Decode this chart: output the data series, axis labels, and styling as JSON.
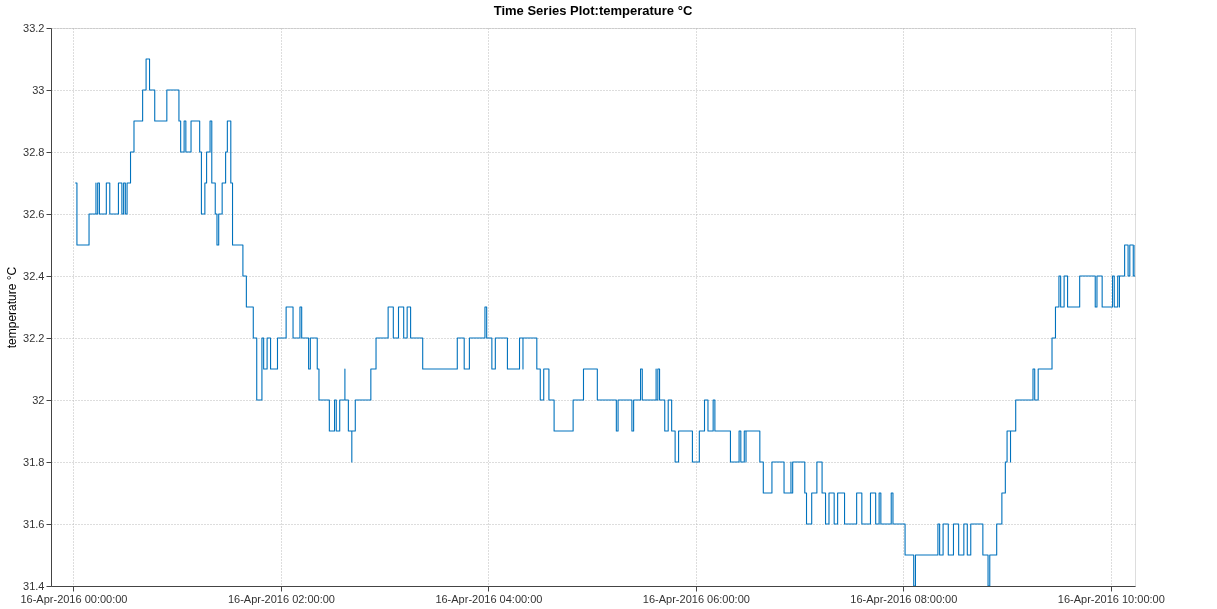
{
  "chart_data": {
    "type": "step",
    "title": "Time Series Plot:temperature °C",
    "ylabel": "temperature °C",
    "xlim": [
      "2016-04-15T23:47",
      "2016-04-16T10:14"
    ],
    "xticks": [
      {
        "value": "2016-04-16T00:00",
        "label": "16-Apr-2016 00:00:00"
      },
      {
        "value": "2016-04-16T02:00",
        "label": "16-Apr-2016 02:00:00"
      },
      {
        "value": "2016-04-16T04:00",
        "label": "16-Apr-2016 04:00:00"
      },
      {
        "value": "2016-04-16T06:00",
        "label": "16-Apr-2016 06:00:00"
      },
      {
        "value": "2016-04-16T08:00",
        "label": "16-Apr-2016 08:00:00"
      },
      {
        "value": "2016-04-16T10:00",
        "label": "16-Apr-2016 10:00:00"
      }
    ],
    "ylim": [
      31.4,
      33.2
    ],
    "yticks": [
      31.4,
      31.6,
      31.8,
      32,
      32.2,
      32.4,
      32.6,
      32.8,
      33,
      33.2
    ],
    "grid": true,
    "line_style": "solid",
    "marker": "none",
    "series": [
      {
        "color": "#0072bd",
        "x": [
          "2016-04-16T00:01",
          "2016-04-16T00:02",
          "2016-04-16T00:02",
          "2016-04-16T00:09",
          "2016-04-16T00:13",
          "2016-04-16T00:13",
          "2016-04-16T00:14",
          "2016-04-16T00:15",
          "2016-04-16T00:19",
          "2016-04-16T00:21",
          "2016-04-16T00:26",
          "2016-04-16T00:28",
          "2016-04-16T00:29",
          "2016-04-16T00:30",
          "2016-04-16T00:31",
          "2016-04-16T00:33",
          "2016-04-16T00:35",
          "2016-04-16T00:40",
          "2016-04-16T00:42",
          "2016-04-16T00:44",
          "2016-04-16T00:47",
          "2016-04-16T00:54",
          "2016-04-16T01:01",
          "2016-04-16T01:02",
          "2016-04-16T01:04",
          "2016-04-16T01:05",
          "2016-04-16T01:08",
          "2016-04-16T01:13",
          "2016-04-16T01:14",
          "2016-04-16T01:14",
          "2016-04-16T01:16",
          "2016-04-16T01:17",
          "2016-04-16T01:19",
          "2016-04-16T01:20",
          "2016-04-16T01:20",
          "2016-04-16T01:22",
          "2016-04-16T01:23",
          "2016-04-16T01:24",
          "2016-04-16T01:26",
          "2016-04-16T01:28",
          "2016-04-16T01:29",
          "2016-04-16T01:31",
          "2016-04-16T01:32",
          "2016-04-16T01:38",
          "2016-04-16T01:40",
          "2016-04-16T01:44",
          "2016-04-16T01:46",
          "2016-04-16T01:49",
          "2016-04-16T01:50",
          "2016-04-16T01:52",
          "2016-04-16T01:54",
          "2016-04-16T01:58",
          "2016-04-16T02:03",
          "2016-04-16T02:07",
          "2016-04-16T02:11",
          "2016-04-16T02:12",
          "2016-04-16T02:16",
          "2016-04-16T02:17",
          "2016-04-16T02:21",
          "2016-04-16T02:22",
          "2016-04-16T02:28",
          "2016-04-16T02:31",
          "2016-04-16T02:32",
          "2016-04-16T02:34",
          "2016-04-16T02:37",
          "2016-04-16T02:37",
          "2016-04-16T02:39",
          "2016-04-16T02:41",
          "2016-04-16T02:41",
          "2016-04-16T02:43",
          "2016-04-16T02:52",
          "2016-04-16T02:55",
          "2016-04-16T03:02",
          "2016-04-16T03:05",
          "2016-04-16T03:08",
          "2016-04-16T03:11",
          "2016-04-16T03:13",
          "2016-04-16T03:15",
          "2016-04-16T03:22",
          "2016-04-16T03:42",
          "2016-04-16T03:46",
          "2016-04-16T03:49",
          "2016-04-16T03:58",
          "2016-04-16T03:59",
          "2016-04-16T04:02",
          "2016-04-16T04:04",
          "2016-04-16T04:11",
          "2016-04-16T04:18",
          "2016-04-16T04:20",
          "2016-04-16T04:20",
          "2016-04-16T04:28",
          "2016-04-16T04:30",
          "2016-04-16T04:32",
          "2016-04-16T04:35",
          "2016-04-16T04:38",
          "2016-04-16T04:49",
          "2016-04-16T04:55",
          "2016-04-16T05:03",
          "2016-04-16T05:14",
          "2016-04-16T05:15",
          "2016-04-16T05:23",
          "2016-04-16T05:24",
          "2016-04-16T05:28",
          "2016-04-16T05:29",
          "2016-04-16T05:37",
          "2016-04-16T05:37",
          "2016-04-16T05:38",
          "2016-04-16T05:39",
          "2016-04-16T05:42",
          "2016-04-16T05:44",
          "2016-04-16T05:46",
          "2016-04-16T05:48",
          "2016-04-16T05:50",
          "2016-04-16T05:58",
          "2016-04-16T06:02",
          "2016-04-16T06:05",
          "2016-04-16T06:07",
          "2016-04-16T06:10",
          "2016-04-16T06:11",
          "2016-04-16T06:20",
          "2016-04-16T06:25",
          "2016-04-16T06:26",
          "2016-04-16T06:28",
          "2016-04-16T06:29",
          "2016-04-16T06:29",
          "2016-04-16T06:37",
          "2016-04-16T06:39",
          "2016-04-16T06:44",
          "2016-04-16T06:51",
          "2016-04-16T06:55",
          "2016-04-16T06:55",
          "2016-04-16T06:56",
          "2016-04-16T07:03",
          "2016-04-16T07:04",
          "2016-04-16T07:07",
          "2016-04-16T07:10",
          "2016-04-16T07:13",
          "2016-04-16T07:15",
          "2016-04-16T07:17",
          "2016-04-16T07:20",
          "2016-04-16T07:22",
          "2016-04-16T07:26",
          "2016-04-16T07:33",
          "2016-04-16T07:36",
          "2016-04-16T07:41",
          "2016-04-16T07:44",
          "2016-04-16T07:46",
          "2016-04-16T07:47",
          "2016-04-16T07:53",
          "2016-04-16T07:54",
          "2016-04-16T08:01",
          "2016-04-16T08:06",
          "2016-04-16T08:07",
          "2016-04-16T08:20",
          "2016-04-16T08:21",
          "2016-04-16T08:23",
          "2016-04-16T08:26",
          "2016-04-16T08:29",
          "2016-04-16T08:32",
          "2016-04-16T08:35",
          "2016-04-16T08:37",
          "2016-04-16T08:39",
          "2016-04-16T08:46",
          "2016-04-16T08:49",
          "2016-04-16T08:50",
          "2016-04-16T08:54",
          "2016-04-16T08:57",
          "2016-04-16T08:59",
          "2016-04-16T09:00",
          "2016-04-16T09:02",
          "2016-04-16T09:02",
          "2016-04-16T09:05",
          "2016-04-16T09:15",
          "2016-04-16T09:16",
          "2016-04-16T09:18",
          "2016-04-16T09:26",
          "2016-04-16T09:28",
          "2016-04-16T09:30",
          "2016-04-16T09:31",
          "2016-04-16T09:33",
          "2016-04-16T09:35",
          "2016-04-16T09:42",
          "2016-04-16T09:51",
          "2016-04-16T09:52",
          "2016-04-16T09:55",
          "2016-04-16T10:01",
          "2016-04-16T10:02",
          "2016-04-16T10:04",
          "2016-04-16T10:05",
          "2016-04-16T10:05",
          "2016-04-16T10:08",
          "2016-04-16T10:10",
          "2016-04-16T10:11",
          "2016-04-16T10:13",
          "2016-04-16T10:14"
        ],
        "values": [
          32.7,
          32.6,
          32.5,
          32.6,
          32.7,
          32.6,
          32.7,
          32.6,
          32.7,
          32.6,
          32.7,
          32.6,
          32.7,
          32.6,
          32.7,
          32.8,
          32.9,
          33.0,
          33.1,
          33.0,
          32.9,
          33.0,
          32.9,
          32.8,
          32.9,
          32.8,
          32.9,
          32.8,
          32.7,
          32.6,
          32.7,
          32.8,
          32.9,
          32.8,
          32.7,
          32.6,
          32.5,
          32.6,
          32.7,
          32.8,
          32.9,
          32.7,
          32.5,
          32.4,
          32.3,
          32.2,
          32.0,
          32.2,
          32.1,
          32.2,
          32.1,
          32.2,
          32.3,
          32.2,
          32.3,
          32.2,
          32.1,
          32.2,
          32.1,
          32.0,
          31.9,
          32.0,
          31.9,
          32.0,
          32.1,
          32.0,
          31.9,
          31.8,
          31.9,
          32.0,
          32.1,
          32.2,
          32.3,
          32.2,
          32.3,
          32.2,
          32.3,
          32.2,
          32.1,
          32.2,
          32.1,
          32.2,
          32.3,
          32.2,
          32.1,
          32.2,
          32.1,
          32.2,
          32.1,
          32.2,
          32.1,
          32.0,
          32.1,
          32.0,
          31.9,
          32.0,
          32.1,
          32.0,
          31.9,
          32.0,
          31.9,
          32.0,
          32.1,
          32.0,
          32.1,
          32.0,
          32.1,
          32.0,
          31.9,
          32.0,
          31.9,
          31.8,
          31.9,
          31.8,
          31.9,
          32.0,
          31.9,
          32.0,
          31.9,
          31.8,
          31.9,
          31.8,
          31.9,
          31.8,
          31.9,
          31.8,
          31.7,
          31.8,
          31.7,
          31.8,
          31.7,
          31.8,
          31.7,
          31.6,
          31.7,
          31.8,
          31.7,
          31.6,
          31.7,
          31.6,
          31.7,
          31.6,
          31.7,
          31.6,
          31.7,
          31.6,
          31.7,
          31.6,
          31.7,
          31.6,
          31.5,
          31.4,
          31.5,
          31.6,
          31.5,
          31.6,
          31.5,
          31.6,
          31.5,
          31.6,
          31.5,
          31.6,
          31.5,
          31.4,
          31.5,
          31.6,
          31.7,
          31.8,
          31.9,
          31.8,
          31.9,
          32.0,
          32.1,
          32.0,
          32.1,
          32.2,
          32.3,
          32.4,
          32.3,
          32.4,
          32.3,
          32.4,
          32.3,
          32.4,
          32.3,
          32.4,
          32.3,
          32.4,
          32.3,
          32.4,
          32.5,
          32.4,
          32.5,
          32.4,
          32.5
        ]
      }
    ]
  }
}
